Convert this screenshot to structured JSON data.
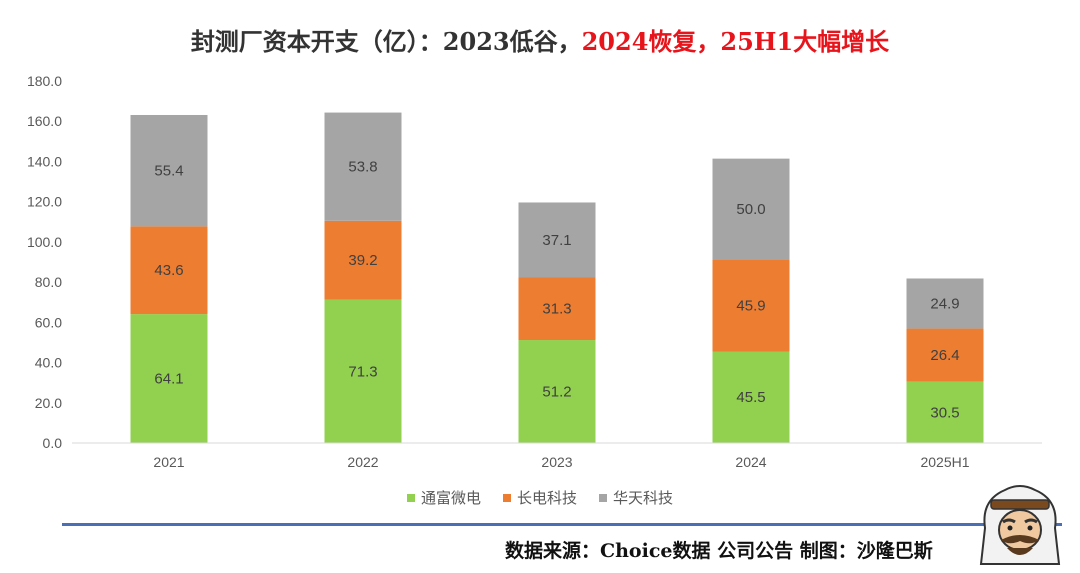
{
  "title": {
    "part1": "封测厂资本开支（亿）：2023低谷，",
    "part2": "2024恢复，25H1大幅增长"
  },
  "chart_data": {
    "type": "bar",
    "stacked": true,
    "categories": [
      "2021",
      "2022",
      "2023",
      "2024",
      "2025H1"
    ],
    "series": [
      {
        "name": "通富微电",
        "color": "#92d050",
        "values": [
          64.1,
          71.3,
          51.2,
          45.5,
          30.5
        ]
      },
      {
        "name": "长电科技",
        "color": "#ed7d31",
        "values": [
          43.6,
          39.2,
          31.3,
          45.9,
          26.4
        ]
      },
      {
        "name": "华天科技",
        "color": "#a5a5a5",
        "values": [
          55.4,
          53.8,
          37.1,
          50.0,
          24.9
        ]
      }
    ],
    "ylim": [
      0,
      180
    ],
    "yticks": [
      "0.0",
      "20.0",
      "40.0",
      "60.0",
      "80.0",
      "100.0",
      "120.0",
      "140.0",
      "160.0",
      "180.0"
    ],
    "legend_position": "bottom",
    "grid": false
  },
  "footer": {
    "source": "数据来源：Choice数据  公司公告  制图：沙隆巴斯"
  },
  "mascot_icon": "cartoon-mascot-icon"
}
